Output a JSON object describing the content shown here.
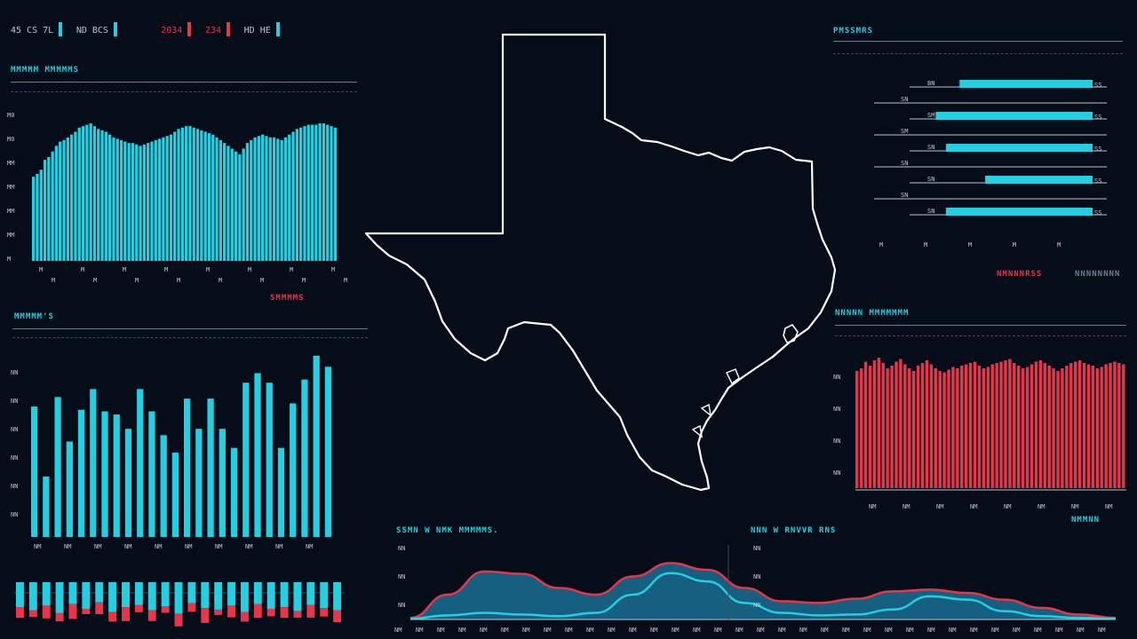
{
  "top_bar": {
    "items": [
      {
        "text": "45 CS 7L",
        "mark": "cyan"
      },
      {
        "text": "ND BCS",
        "mark": "cyan"
      },
      {
        "text": "2034",
        "mark": "red",
        "color": "red"
      },
      {
        "text": "234",
        "mark": "red",
        "color": "red"
      },
      {
        "text": "HD HE",
        "mark": "cyan"
      }
    ]
  },
  "colors": {
    "background": "#050d19",
    "cyan": "#23cfe0",
    "red": "#e8354a",
    "outline": "#ffffff",
    "grey": "#6d7d8e"
  },
  "panels": {
    "top_left": {
      "title": "MMMMM MMMMMS",
      "footer": "SMMMMS"
    },
    "mid_left": {
      "title": "MMMMM'S"
    },
    "top_right": {
      "title": "PMSSMRS",
      "footer_red": "NMNNNRSS",
      "footer_grey": "NNNNNNNN"
    },
    "mid_right": {
      "title": "NNNNN MMMMMMM",
      "footer": "NMMNN"
    },
    "bottom_center_left": {
      "title": "SSMN W NMK MMMMMS."
    },
    "bottom_center_right": {
      "title": "NNN W RNVVR RNS"
    }
  },
  "chart_data": [
    {
      "id": "top-left-dense-bars",
      "type": "bar",
      "color": "cyan",
      "y_ticks": [
        "M0",
        "M0",
        "MM",
        "MM",
        "MM",
        "MM",
        "M"
      ],
      "x_ticks": [
        "M",
        "M",
        "M",
        "M",
        "M",
        "M",
        "M",
        "M"
      ],
      "values": [
        60,
        62,
        65,
        72,
        74,
        78,
        82,
        85,
        86,
        88,
        90,
        92,
        95,
        96,
        97,
        98,
        96,
        94,
        93,
        92,
        90,
        88,
        87,
        86,
        85,
        84,
        84,
        83,
        82,
        83,
        84,
        85,
        86,
        87,
        88,
        89,
        90,
        92,
        94,
        95,
        96,
        96,
        95,
        94,
        93,
        92,
        91,
        90,
        88,
        86,
        84,
        82,
        80,
        78,
        76,
        80,
        84,
        86,
        88,
        89,
        90,
        89,
        88,
        88,
        87,
        86,
        88,
        90,
        92,
        94,
        95,
        96,
        97,
        97,
        97,
        98,
        98,
        97,
        96,
        95
      ],
      "ylim": [
        0,
        110
      ]
    },
    {
      "id": "mid-left-bars",
      "type": "bar",
      "color": "cyan",
      "y_ticks": [
        "NN",
        "NN",
        "NN",
        "NN",
        "NN",
        "NN"
      ],
      "x_ticks": [
        "NM",
        "NM",
        "NM",
        "NM",
        "NM",
        "NM",
        "NM",
        "NM",
        "NM",
        "NM"
      ],
      "values": [
        82,
        38,
        88,
        60,
        80,
        93,
        79,
        77,
        68,
        93,
        79,
        64,
        53,
        87,
        68,
        87,
        68,
        56,
        97,
        103,
        97,
        56,
        84,
        99,
        114,
        107
      ],
      "ylim": [
        0,
        120
      ]
    },
    {
      "id": "bottom-left-diverging-bars",
      "type": "bar",
      "color": "cyan",
      "series": [
        {
          "name": "",
          "values": [
            18,
            22,
            16,
            25,
            14,
            20,
            12,
            24,
            18,
            15,
            22,
            17,
            26,
            13,
            19,
            21,
            16,
            24,
            14,
            20,
            18,
            23,
            15,
            19,
            22
          ]
        },
        {
          "name": "",
          "values": [
            10,
            6,
            12,
            8,
            14,
            5,
            11,
            9,
            13,
            7,
            10,
            6,
            12,
            8,
            14,
            5,
            11,
            9,
            13,
            7,
            10,
            6,
            12,
            8,
            11
          ]
        }
      ]
    },
    {
      "id": "top-right-horizontal-bars",
      "type": "bar",
      "orientation": "horizontal",
      "color": "cyan",
      "categories": [
        "BN",
        "SN",
        "SM",
        "SM",
        "SN",
        "SN",
        "SN",
        "SN",
        "SN"
      ],
      "values": [
        0.78,
        0.0,
        0.92,
        0.0,
        0.86,
        0.0,
        0.63,
        0.0,
        0.86
      ],
      "x_ticks": [
        "M",
        "M",
        "M",
        "M",
        "M"
      ]
    },
    {
      "id": "mid-right-dense-bars",
      "type": "bar",
      "color": "red",
      "y_ticks": [
        "NN",
        "NN",
        "NN",
        "NN"
      ],
      "values": [
        88,
        90,
        95,
        92,
        96,
        98,
        94,
        90,
        92,
        95,
        97,
        93,
        90,
        88,
        92,
        94,
        96,
        93,
        90,
        88,
        87,
        89,
        91,
        90,
        92,
        93,
        94,
        95,
        92,
        90,
        91,
        93,
        94,
        95,
        96,
        97,
        94,
        92,
        90,
        91,
        93,
        95,
        96,
        94,
        92,
        90,
        88,
        90,
        92,
        94,
        95,
        96,
        94,
        93,
        92,
        90,
        91,
        93,
        94,
        95,
        94,
        93
      ],
      "ylim": [
        0,
        110
      ]
    },
    {
      "id": "bottom-area-chart",
      "type": "area",
      "y_ticks": [
        "NN",
        "NN",
        "NN"
      ],
      "x_ticks": [
        "NM",
        "NM",
        "NM",
        "NM",
        "NM",
        "NM",
        "NM",
        "NM",
        "NM",
        "NM",
        "NM",
        "NM",
        "NM",
        "NM",
        "NM",
        "NM",
        "NM",
        "NM",
        "NM",
        "NM",
        "NM",
        "NM",
        "NM",
        "NM",
        "NM",
        "NM",
        "NM",
        "NM",
        "NM",
        "NM",
        "NM",
        "NM",
        "NM",
        "NM"
      ],
      "series": [
        {
          "name": "",
          "color": "red",
          "values": [
            2,
            30,
            58,
            55,
            38,
            30,
            52,
            68,
            60,
            38,
            22,
            20,
            25,
            34,
            36,
            32,
            24,
            14,
            6,
            2
          ]
        },
        {
          "name": "",
          "color": "cyan",
          "values": [
            1,
            5,
            8,
            6,
            4,
            8,
            30,
            56,
            46,
            20,
            8,
            5,
            6,
            12,
            28,
            24,
            10,
            4,
            2,
            1
          ]
        }
      ],
      "ylim": [
        0,
        75
      ]
    }
  ]
}
